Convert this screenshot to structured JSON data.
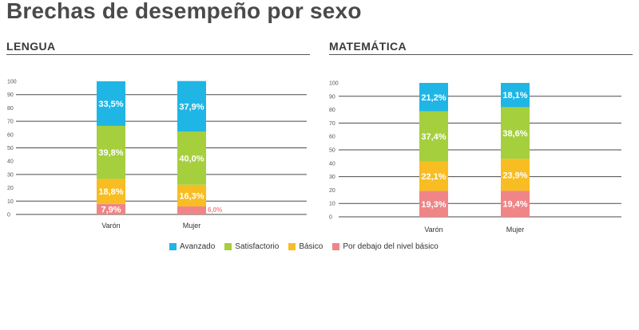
{
  "title": "Brechas de desempeño por sexo",
  "legend": [
    {
      "label": "Avanzado",
      "color": "#1fb6e6"
    },
    {
      "label": "Satisfactorio",
      "color": "#a6cf3e"
    },
    {
      "label": "Básico",
      "color": "#f7bd22"
    },
    {
      "label": "Por debajo del nivel básico",
      "color": "#ef8587"
    }
  ],
  "chart_data": [
    {
      "type": "bar",
      "stacked": true,
      "title": "LENGUA",
      "categories": [
        "Varón",
        "Mujer"
      ],
      "ylim": [
        0,
        100
      ],
      "yticks": [
        "0",
        "10",
        "20",
        "30",
        "40",
        "50",
        "60",
        "70",
        "80",
        "90",
        "100"
      ],
      "grid": true,
      "series": [
        {
          "name": "Por debajo del nivel básico",
          "values": [
            7.9,
            6.0
          ],
          "labels": [
            "7,9%",
            "6,0%"
          ]
        },
        {
          "name": "Básico",
          "values": [
            18.8,
            16.3
          ],
          "labels": [
            "18,8%",
            "16,3%"
          ]
        },
        {
          "name": "Satisfactorio",
          "values": [
            39.8,
            40.0
          ],
          "labels": [
            "39,8%",
            "40,0%"
          ]
        },
        {
          "name": "Avanzado",
          "values": [
            33.5,
            37.9
          ],
          "labels": [
            "33,5%",
            "37,9%"
          ]
        }
      ]
    },
    {
      "type": "bar",
      "stacked": true,
      "title": "MATEMÁTICA",
      "categories": [
        "Varón",
        "Mujer"
      ],
      "ylim": [
        0,
        100
      ],
      "yticks": [
        "0",
        "10",
        "20",
        "30",
        "40",
        "50",
        "60",
        "70",
        "80",
        "90",
        "100"
      ],
      "grid": true,
      "series": [
        {
          "name": "Por debajo del nivel básico",
          "values": [
            19.3,
            19.4
          ],
          "labels": [
            "19,3%",
            "19,4%"
          ]
        },
        {
          "name": "Básico",
          "values": [
            22.1,
            23.9
          ],
          "labels": [
            "22,1%",
            "23,9%"
          ]
        },
        {
          "name": "Satisfactorio",
          "values": [
            37.4,
            38.6
          ],
          "labels": [
            "37,4%",
            "38,6%"
          ]
        },
        {
          "name": "Avanzado",
          "values": [
            21.2,
            18.1
          ],
          "labels": [
            "21,2%",
            "18,1%"
          ]
        }
      ]
    }
  ]
}
